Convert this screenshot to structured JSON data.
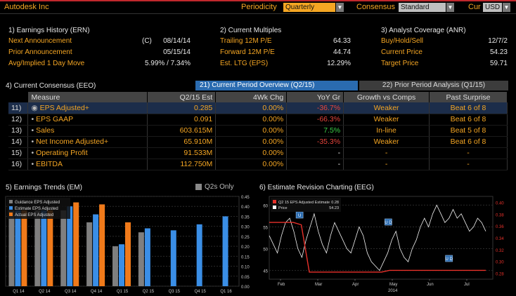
{
  "header": {
    "title": "Autodesk Inc",
    "periodicity_label": "Periodicity",
    "periodicity_value": "Quarterly",
    "consensus_label": "Consensus",
    "consensus_value": "Standard",
    "cur_label": "Cur",
    "cur_value": "USD"
  },
  "earnings_history": {
    "title": "1) Earnings History (ERN)",
    "rows": [
      {
        "label": "Next Announcement",
        "prefix": "(C)",
        "value": "08/14/14"
      },
      {
        "label": "Prior Announcement",
        "prefix": "",
        "value": "05/15/14"
      },
      {
        "label": "Avg/Implied 1 Day Move",
        "prefix": "",
        "value": "5.99% / 7.34%"
      }
    ]
  },
  "current_multiples": {
    "title": "2) Current Multiples",
    "rows": [
      {
        "label": "Trailing 12M P/E",
        "value": "64.33"
      },
      {
        "label": "Forward 12M P/E",
        "value": "44.74"
      },
      {
        "label": "Est. LTG (EPS)",
        "value": "12.29%"
      }
    ]
  },
  "analyst_coverage": {
    "title": "3) Analyst Coverage (ANR)",
    "rows": [
      {
        "label": "Buy/Hold/Sell",
        "value": "12/7/2"
      },
      {
        "label": "Current Price",
        "value": "54.23"
      },
      {
        "label": "Target Price",
        "value": "59.71"
      }
    ]
  },
  "consensus": {
    "title": "4) Current Consensus (EEO)",
    "tab_active": "21) Current Period Overview (Q2/15)",
    "tab_inactive": "22) Prior Period Analysis (Q1/15)",
    "columns": [
      "Measure",
      "Q2/15 Est",
      "4Wk Chg",
      "YoY Gr",
      "Growth vs Comps",
      "Past Surprise"
    ],
    "rows": [
      {
        "idx": "11)",
        "measure": "EPS Adjusted+",
        "est": "0.285",
        "chg": "0.00%",
        "yoy": "-36.7%",
        "yoy_color": "red",
        "comps": "Weaker",
        "surprise": "Beat 6 of 8",
        "highlight": true
      },
      {
        "idx": "12)",
        "measure": "EPS GAAP",
        "est": "0.091",
        "chg": "0.00%",
        "yoy": "-66.3%",
        "yoy_color": "red",
        "comps": "Weaker",
        "surprise": "Beat 6 of 8",
        "highlight": false
      },
      {
        "idx": "13)",
        "measure": "Sales",
        "est": "603.615M",
        "chg": "0.00%",
        "yoy": "7.5%",
        "yoy_color": "green",
        "comps": "In-line",
        "surprise": "Beat 5 of 8",
        "highlight": false
      },
      {
        "idx": "14)",
        "measure": "Net Income Adjusted+",
        "est": "65.910M",
        "chg": "0.00%",
        "yoy": "-35.3%",
        "yoy_color": "red",
        "comps": "Weaker",
        "surprise": "Beat 6 of 8",
        "highlight": false
      },
      {
        "idx": "15)",
        "measure": "Operating Profit",
        "est": "91.533M",
        "chg": "0.00%",
        "yoy": "-",
        "yoy_color": "white",
        "comps": "-",
        "surprise": "-",
        "highlight": false
      },
      {
        "idx": "16)",
        "measure": "EBITDA",
        "est": "112.750M",
        "chg": "0.00%",
        "yoy": "-",
        "yoy_color": "white",
        "comps": "-",
        "surprise": "-",
        "highlight": false
      }
    ]
  },
  "earnings_trends": {
    "title": "5) Earnings Trends (EM)",
    "q2s_only": "Q2s Only",
    "legend": [
      "Guidance EPS Adjusted",
      "Estimate EPS Adjusted",
      "Actual EPS Adjusted"
    ],
    "colors": {
      "guidance": "#7f7f7f",
      "estimate": "#3a8ee6",
      "actual": "#f07a1a"
    },
    "y_ticks": [
      "0.45",
      "0.40",
      "0.35",
      "0.30",
      "0.25",
      "0.20",
      "0.15",
      "0.10",
      "0.05",
      "0.00"
    ],
    "categories": [
      "Q1 14",
      "Q2 14",
      "Q3 14",
      "Q4 14",
      "Q1 15",
      "Q2 15",
      "Q3 15",
      "Q4 15",
      "Q1 16"
    ],
    "guidance": [
      0.38,
      0.38,
      0.38,
      0.32,
      0.2,
      0.27,
      null,
      null,
      null
    ],
    "estimate": [
      0.38,
      0.38,
      0.4,
      0.36,
      0.21,
      0.29,
      0.28,
      0.31,
      0.35
    ],
    "actual": [
      0.38,
      0.38,
      0.42,
      0.41,
      0.32,
      null,
      null,
      null,
      null
    ]
  },
  "estimate_revision": {
    "title": "6) Estimate Revision Charting (EEG)",
    "legend": [
      {
        "label": "Q2 15 EPS Adjusted Estimate",
        "value": "0.28",
        "color": "#e8312a"
      },
      {
        "label": "Price",
        "value": "54.23",
        "color": "#ffffff"
      }
    ],
    "left_ticks": [
      "60",
      "55",
      "50",
      "45"
    ],
    "right_ticks": [
      "0.40",
      "0.38",
      "0.36",
      "0.34",
      "0.32",
      "0.30",
      "0.28"
    ],
    "x_ticks": [
      "Feb",
      "Mar",
      "Apr",
      "May",
      "Jun",
      "Jul"
    ],
    "year": "2014",
    "price": [
      53,
      51,
      49,
      53,
      56,
      57,
      54,
      50,
      48,
      52,
      55,
      58,
      54,
      51,
      49,
      53,
      56,
      54,
      52,
      50,
      49,
      52,
      55,
      53,
      49,
      47,
      46,
      45,
      47,
      49,
      52,
      54,
      50,
      48,
      47,
      50,
      52,
      55,
      57,
      55,
      58,
      60,
      58,
      56,
      57,
      59,
      57,
      58,
      56,
      54,
      55,
      57,
      56,
      54
    ],
    "estimate": [
      0.366,
      0.366,
      0.366,
      0.366,
      0.362,
      0.282,
      0.282,
      0.282,
      0.282,
      0.282,
      0.282,
      0.282,
      0.282,
      0.282,
      0.282,
      0.285,
      0.285,
      0.285,
      0.285,
      0.285,
      0.285,
      0.285,
      0.285,
      0.285,
      0.285,
      0.285,
      0.285,
      0.285
    ],
    "markers": [
      "U",
      "U D",
      "U D"
    ]
  }
}
